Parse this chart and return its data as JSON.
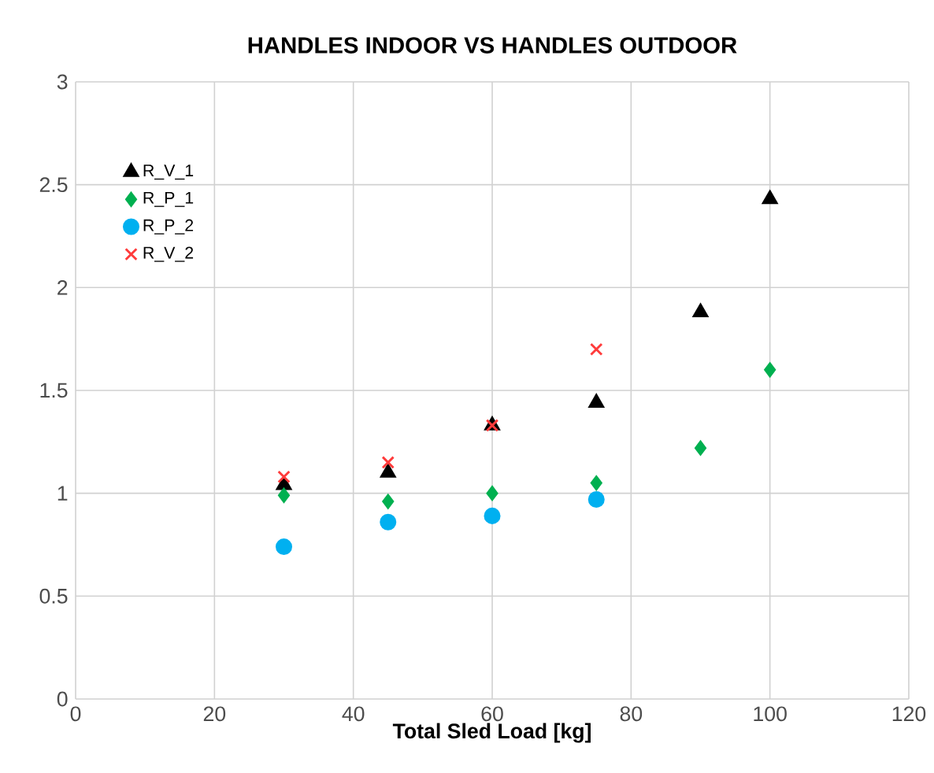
{
  "chart_data": {
    "type": "scatter",
    "title": "HANDLES INDOOR VS HANDLES OUTDOOR",
    "xlabel": "Total Sled Load  [kg]",
    "xlim": [
      0,
      120
    ],
    "xticks": [
      0,
      20,
      40,
      60,
      80,
      100,
      120
    ],
    "ylim": [
      0,
      3
    ],
    "yticks": [
      0,
      0.5,
      1,
      1.5,
      2,
      2.5,
      3
    ],
    "grid": true,
    "legend": "top left",
    "series": [
      {
        "name": "R_V_1",
        "color": "#000000",
        "marker": "triangle",
        "x": [
          30,
          45,
          60,
          75,
          90,
          100
        ],
        "values": [
          1.04,
          1.1,
          1.33,
          1.44,
          1.88,
          2.43
        ]
      },
      {
        "name": "R_P_1",
        "color": "#00b050",
        "marker": "diamond",
        "x": [
          30,
          45,
          60,
          75,
          90,
          100
        ],
        "values": [
          0.99,
          0.96,
          1.0,
          1.05,
          1.22,
          1.6
        ]
      },
      {
        "name": "R_P_2",
        "color": "#00b0f0",
        "marker": "circle",
        "x": [
          30,
          45,
          60,
          75
        ],
        "values": [
          0.74,
          0.86,
          0.89,
          0.97
        ]
      },
      {
        "name": "R_V_2",
        "color": "#ff3b3b",
        "marker": "cross",
        "x": [
          30,
          45,
          60,
          75
        ],
        "values": [
          1.08,
          1.15,
          1.33,
          1.7
        ]
      }
    ]
  }
}
